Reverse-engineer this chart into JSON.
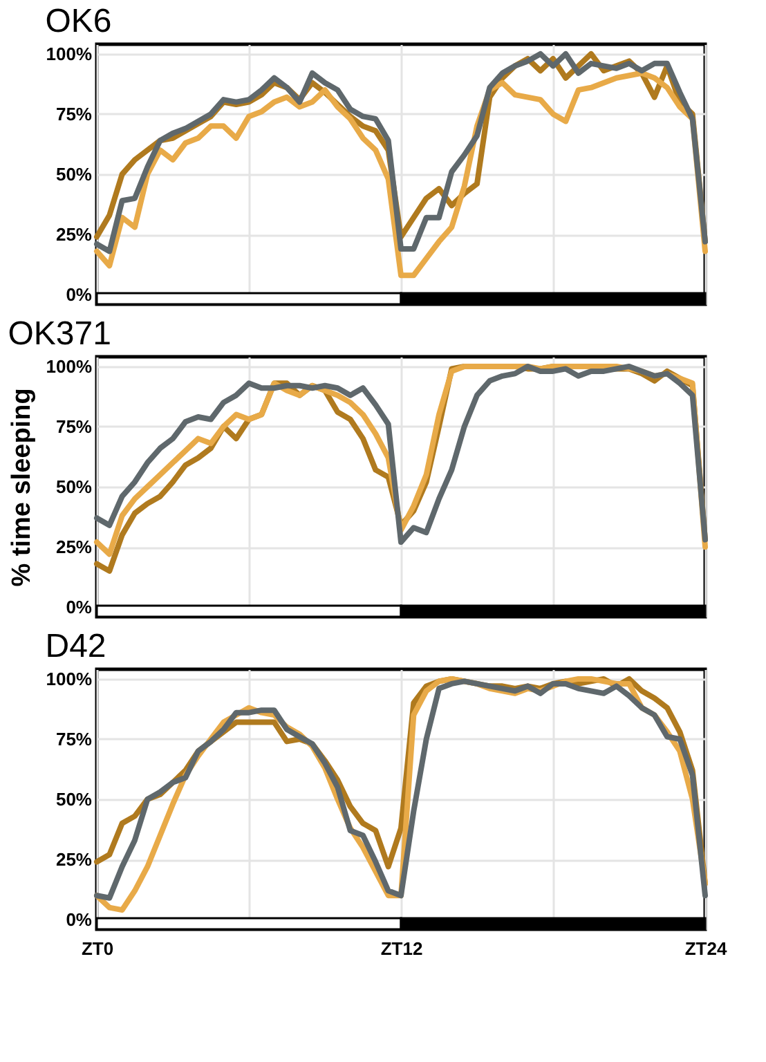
{
  "chart_data": [
    {
      "type": "line",
      "title": "OK6",
      "ylim": [
        -4,
        104
      ],
      "grid": true,
      "tick_labels": "y",
      "line_style": "solid",
      "marker": "none",
      "categories": [
        "ZT0",
        null,
        null,
        null,
        null,
        null,
        null,
        null,
        null,
        null,
        null,
        null,
        null,
        null,
        null,
        null,
        null,
        null,
        null,
        null,
        null,
        null,
        null,
        null,
        "ZT12",
        null,
        null,
        null,
        null,
        null,
        null,
        null,
        null,
        null,
        null,
        null,
        null,
        null,
        null,
        null,
        null,
        null,
        null,
        null,
        null,
        null,
        null,
        null,
        "ZT24"
      ],
      "yticks": [
        {
          "value": 0,
          "label": "0%"
        },
        {
          "value": 25,
          "label": "25%"
        },
        {
          "value": 50,
          "label": "50%"
        },
        {
          "value": 75,
          "label": "75%"
        },
        {
          "value": 100,
          "label": "100%"
        }
      ],
      "bands": [
        {
          "axis": "x",
          "from": "ZT0",
          "to": "ZT12",
          "color": "#ffffff"
        },
        {
          "axis": "x",
          "from": "ZT12",
          "to": "ZT24",
          "color": "#000000"
        }
      ],
      "series": [
        {
          "color": "#b07a1e",
          "values": [
            24,
            33,
            50,
            56,
            60,
            64,
            65,
            68,
            71,
            74,
            80,
            79,
            80,
            83,
            88,
            86,
            81,
            88,
            84,
            79,
            74,
            70,
            68,
            60,
            24,
            32,
            40,
            44,
            37,
            42,
            46,
            82,
            90,
            95,
            98,
            93,
            98,
            90,
            95,
            100,
            93,
            95,
            97,
            92,
            82,
            95,
            80,
            75,
            22
          ]
        },
        {
          "color": "#e8aa48",
          "values": [
            18,
            12,
            32,
            28,
            50,
            60,
            56,
            63,
            65,
            70,
            70,
            65,
            74,
            76,
            80,
            82,
            78,
            80,
            85,
            78,
            73,
            65,
            60,
            48,
            8,
            8,
            15,
            22,
            28,
            45,
            70,
            85,
            88,
            83,
            82,
            81,
            75,
            72,
            85,
            86,
            88,
            90,
            91,
            92,
            90,
            86,
            78,
            73,
            18
          ]
        },
        {
          "color": "#5f686c",
          "values": [
            21,
            18,
            39,
            40,
            53,
            64,
            67,
            69,
            72,
            75,
            81,
            80,
            81,
            85,
            90,
            86,
            80,
            92,
            88,
            85,
            77,
            74,
            73,
            64,
            19,
            19,
            32,
            32,
            51,
            58,
            66,
            86,
            92,
            95,
            97,
            100,
            95,
            100,
            92,
            96,
            95,
            94,
            96,
            93,
            96,
            96,
            84,
            73,
            22
          ]
        }
      ]
    },
    {
      "type": "line",
      "title": "OK371",
      "ylabel": "% time sleeping",
      "ylim": [
        -4,
        104
      ],
      "grid": true,
      "tick_labels": "y",
      "line_style": "solid",
      "marker": "none",
      "categories": [
        "ZT0",
        null,
        null,
        null,
        null,
        null,
        null,
        null,
        null,
        null,
        null,
        null,
        null,
        null,
        null,
        null,
        null,
        null,
        null,
        null,
        null,
        null,
        null,
        null,
        "ZT12",
        null,
        null,
        null,
        null,
        null,
        null,
        null,
        null,
        null,
        null,
        null,
        null,
        null,
        null,
        null,
        null,
        null,
        null,
        null,
        null,
        null,
        null,
        null,
        "ZT24"
      ],
      "yticks": [
        {
          "value": 0,
          "label": "0%"
        },
        {
          "value": 25,
          "label": "25%"
        },
        {
          "value": 50,
          "label": "50%"
        },
        {
          "value": 75,
          "label": "75%"
        },
        {
          "value": 100,
          "label": "100%"
        }
      ],
      "bands": [
        {
          "axis": "x",
          "from": "ZT0",
          "to": "ZT12",
          "color": "#ffffff"
        },
        {
          "axis": "x",
          "from": "ZT12",
          "to": "ZT24",
          "color": "#000000"
        }
      ],
      "series": [
        {
          "color": "#b07a1e",
          "values": [
            18,
            15,
            30,
            39,
            43,
            46,
            52,
            59,
            62,
            66,
            75,
            70,
            78,
            80,
            93,
            93,
            88,
            92,
            90,
            81,
            78,
            70,
            57,
            54,
            34,
            40,
            52,
            75,
            99,
            100,
            100,
            100,
            100,
            100,
            99,
            99,
            100,
            100,
            100,
            100,
            99,
            99,
            99,
            97,
            94,
            98,
            95,
            92,
            28
          ]
        },
        {
          "color": "#e8aa48",
          "values": [
            27,
            22,
            38,
            45,
            50,
            55,
            60,
            65,
            70,
            68,
            75,
            80,
            78,
            80,
            93,
            90,
            88,
            92,
            90,
            88,
            85,
            80,
            72,
            62,
            32,
            42,
            55,
            80,
            98,
            100,
            100,
            100,
            100,
            100,
            100,
            99,
            100,
            100,
            100,
            100,
            100,
            100,
            99,
            98,
            96,
            97,
            95,
            93,
            25
          ]
        },
        {
          "color": "#5f686c",
          "values": [
            37,
            34,
            46,
            52,
            60,
            66,
            70,
            77,
            79,
            78,
            85,
            88,
            93,
            91,
            91,
            92,
            92,
            91,
            92,
            91,
            88,
            91,
            84,
            76,
            27,
            33,
            31,
            45,
            57,
            75,
            88,
            94,
            96,
            97,
            100,
            98,
            98,
            99,
            96,
            98,
            98,
            99,
            100,
            98,
            96,
            97,
            93,
            88,
            28
          ]
        }
      ]
    },
    {
      "type": "line",
      "title": "D42",
      "ylim": [
        -4,
        104
      ],
      "grid": true,
      "line_style": "solid",
      "marker": "none",
      "categories": [
        "ZT0",
        null,
        null,
        null,
        null,
        null,
        null,
        null,
        null,
        null,
        null,
        null,
        null,
        null,
        null,
        null,
        null,
        null,
        null,
        null,
        null,
        null,
        null,
        null,
        "ZT12",
        null,
        null,
        null,
        null,
        null,
        null,
        null,
        null,
        null,
        null,
        null,
        null,
        null,
        null,
        null,
        null,
        null,
        null,
        null,
        null,
        null,
        null,
        null,
        "ZT24"
      ],
      "yticks": [
        {
          "value": 0,
          "label": "0%"
        },
        {
          "value": 25,
          "label": "25%"
        },
        {
          "value": 50,
          "label": "50%"
        },
        {
          "value": 75,
          "label": "75%"
        },
        {
          "value": 100,
          "label": "100%"
        }
      ],
      "bands": [
        {
          "axis": "x",
          "from": "ZT0",
          "to": "ZT12",
          "color": "#ffffff"
        },
        {
          "axis": "x",
          "from": "ZT12",
          "to": "ZT24",
          "color": "#000000"
        }
      ],
      "series": [
        {
          "color": "#b07a1e",
          "values": [
            24,
            27,
            40,
            43,
            50,
            52,
            57,
            62,
            70,
            74,
            78,
            82,
            82,
            82,
            82,
            74,
            75,
            73,
            66,
            58,
            47,
            40,
            37,
            22,
            38,
            90,
            97,
            99,
            100,
            99,
            98,
            97,
            97,
            96,
            97,
            96,
            98,
            99,
            98,
            99,
            100,
            97,
            100,
            95,
            92,
            88,
            78,
            62,
            15
          ]
        },
        {
          "color": "#e8aa48",
          "values": [
            10,
            5,
            4,
            12,
            22,
            35,
            48,
            60,
            68,
            75,
            82,
            85,
            88,
            86,
            85,
            80,
            77,
            72,
            63,
            50,
            38,
            30,
            20,
            10,
            10,
            85,
            95,
            99,
            100,
            99,
            98,
            96,
            95,
            94,
            96,
            95,
            97,
            99,
            100,
            100,
            99,
            98,
            98,
            88,
            85,
            78,
            70,
            50,
            15
          ]
        },
        {
          "color": "#5f686c",
          "values": [
            10,
            9,
            22,
            33,
            50,
            53,
            57,
            59,
            70,
            74,
            79,
            86,
            86,
            87,
            87,
            79,
            76,
            73,
            65,
            55,
            37,
            35,
            24,
            12,
            10,
            45,
            75,
            96,
            98,
            99,
            98,
            97,
            96,
            95,
            97,
            94,
            98,
            98,
            96,
            95,
            94,
            97,
            93,
            88,
            85,
            76,
            75,
            60,
            10
          ]
        }
      ]
    }
  ]
}
